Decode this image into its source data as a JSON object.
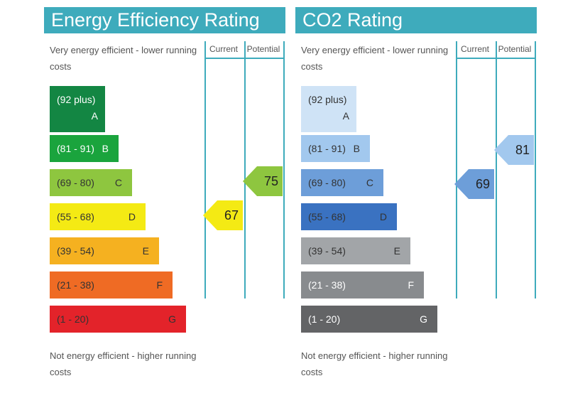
{
  "chart_data": [
    {
      "type": "bar",
      "title": "Energy Efficiency Rating",
      "top_note": "Very energy efficient - lower running costs",
      "bottom_note": "Not energy efficient - higher running costs",
      "columns": [
        "Current",
        "Potential"
      ],
      "bands": [
        {
          "range": "(92 plus)",
          "letter": "A",
          "min": 92,
          "max": 100,
          "color": "#138643",
          "text": "#ffffff"
        },
        {
          "range": "(81 - 91)",
          "letter": "B",
          "min": 81,
          "max": 91,
          "color": "#1aa43d",
          "text": "#ffffff"
        },
        {
          "range": "(69 - 80)",
          "letter": "C",
          "min": 69,
          "max": 80,
          "color": "#8ec63f",
          "text": "#333333"
        },
        {
          "range": "(55 - 68)",
          "letter": "D",
          "min": 55,
          "max": 68,
          "color": "#f4ea14",
          "text": "#333333"
        },
        {
          "range": "(39 - 54)",
          "letter": "E",
          "min": 39,
          "max": 54,
          "color": "#f5b120",
          "text": "#333333"
        },
        {
          "range": "(21 - 38)",
          "letter": "F",
          "min": 21,
          "max": 38,
          "color": "#ef6b24",
          "text": "#333333"
        },
        {
          "range": "(1 - 20)",
          "letter": "G",
          "min": 1,
          "max": 20,
          "color": "#e3232a",
          "text": "#333333"
        }
      ],
      "current": {
        "value": 67,
        "band": "D",
        "color": "#f4ea14"
      },
      "potential": {
        "value": 75,
        "band": "C",
        "color": "#8ec63f"
      }
    },
    {
      "type": "bar",
      "title": "CO2 Rating",
      "top_note": "Very energy efficient - lower running costs",
      "bottom_note": "Not energy efficient - higher running costs",
      "columns": [
        "Current",
        "Potential"
      ],
      "bands": [
        {
          "range": "(92 plus)",
          "letter": "A",
          "min": 92,
          "max": 100,
          "color": "#cfe3f6",
          "text": "#333333"
        },
        {
          "range": "(81 - 91)",
          "letter": "B",
          "min": 81,
          "max": 91,
          "color": "#a2c8ee",
          "text": "#333333"
        },
        {
          "range": "(69 - 80)",
          "letter": "C",
          "min": 69,
          "max": 80,
          "color": "#6d9ed9",
          "text": "#333333"
        },
        {
          "range": "(55 - 68)",
          "letter": "D",
          "min": 55,
          "max": 68,
          "color": "#3a72c1",
          "text": "#333333"
        },
        {
          "range": "(39 - 54)",
          "letter": "E",
          "min": 39,
          "max": 54,
          "color": "#a2a5a8",
          "text": "#333333"
        },
        {
          "range": "(21 - 38)",
          "letter": "F",
          "min": 21,
          "max": 38,
          "color": "#888b8e",
          "text": "#ffffff"
        },
        {
          "range": "(1 - 20)",
          "letter": "G",
          "min": 1,
          "max": 20,
          "color": "#636466",
          "text": "#ffffff"
        }
      ],
      "current": {
        "value": 69,
        "band": "C",
        "color": "#6d9ed9"
      },
      "potential": {
        "value": 81,
        "band": "B",
        "color": "#a2c8ee"
      }
    }
  ]
}
